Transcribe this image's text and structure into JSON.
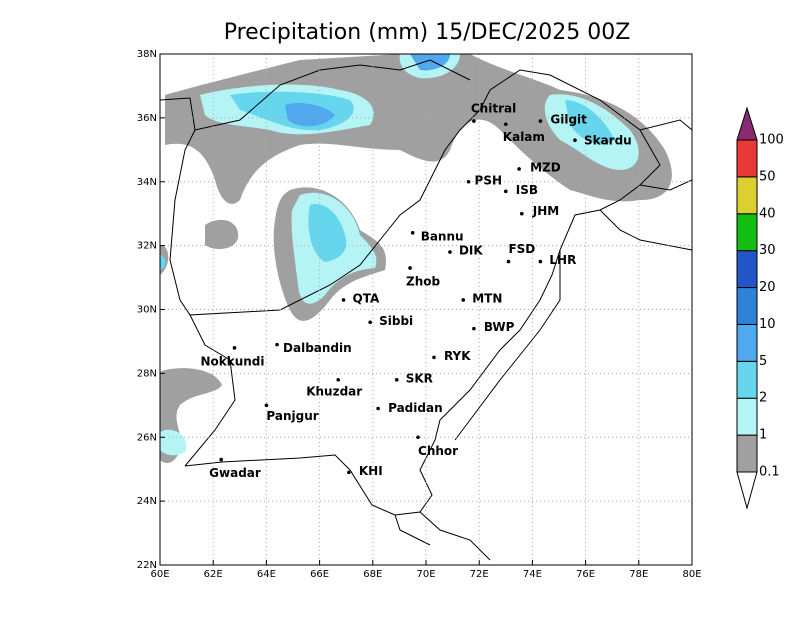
{
  "title": "Precipitation (mm) 15/DEC/2025 00Z",
  "map": {
    "xlim": [
      60,
      80
    ],
    "ylim": [
      22,
      38
    ],
    "grid": true,
    "xticks": [
      {
        "value": 60,
        "label": "60E"
      },
      {
        "value": 62,
        "label": "62E"
      },
      {
        "value": 64,
        "label": "64E"
      },
      {
        "value": 66,
        "label": "66E"
      },
      {
        "value": 68,
        "label": "68E"
      },
      {
        "value": 70,
        "label": "70E"
      },
      {
        "value": 72,
        "label": "72E"
      },
      {
        "value": 74,
        "label": "74E"
      },
      {
        "value": 76,
        "label": "76E"
      },
      {
        "value": 78,
        "label": "78E"
      },
      {
        "value": 80,
        "label": "80E"
      }
    ],
    "yticks": [
      {
        "value": 22,
        "label": "22N"
      },
      {
        "value": 24,
        "label": "24N"
      },
      {
        "value": 26,
        "label": "26N"
      },
      {
        "value": 28,
        "label": "28N"
      },
      {
        "value": 30,
        "label": "30N"
      },
      {
        "value": 32,
        "label": "32N"
      },
      {
        "value": 34,
        "label": "34N"
      },
      {
        "value": 36,
        "label": "36N"
      },
      {
        "value": 38,
        "label": "38N"
      }
    ]
  },
  "cities": [
    {
      "name": "Chitral",
      "lon": 71.8,
      "lat": 35.9
    },
    {
      "name": "Gilgit",
      "lon": 74.3,
      "lat": 35.9
    },
    {
      "name": "Kalam",
      "lon": 73.0,
      "lat": 35.8
    },
    {
      "name": "Skardu",
      "lon": 75.6,
      "lat": 35.3
    },
    {
      "name": "MZD",
      "lon": 73.5,
      "lat": 34.4
    },
    {
      "name": "PSH",
      "lon": 71.6,
      "lat": 34.0
    },
    {
      "name": "ISB",
      "lon": 73.0,
      "lat": 33.7
    },
    {
      "name": "JHM",
      "lon": 73.6,
      "lat": 33.0
    },
    {
      "name": "Bannu",
      "lon": 69.5,
      "lat": 32.4
    },
    {
      "name": "DIK",
      "lon": 70.9,
      "lat": 31.8
    },
    {
      "name": "FSD",
      "lon": 73.1,
      "lat": 31.5
    },
    {
      "name": "LHR",
      "lon": 74.3,
      "lat": 31.5
    },
    {
      "name": "Zhob",
      "lon": 69.4,
      "lat": 31.3
    },
    {
      "name": "QTA",
      "lon": 66.9,
      "lat": 30.3
    },
    {
      "name": "MTN",
      "lon": 71.4,
      "lat": 30.3
    },
    {
      "name": "Sibbi",
      "lon": 67.9,
      "lat": 29.6
    },
    {
      "name": "BWP",
      "lon": 71.8,
      "lat": 29.4
    },
    {
      "name": "Dalbandin",
      "lon": 64.4,
      "lat": 28.9
    },
    {
      "name": "Nokkundi",
      "lon": 62.8,
      "lat": 28.8
    },
    {
      "name": "RYK",
      "lon": 70.3,
      "lat": 28.5
    },
    {
      "name": "Khuzdar",
      "lon": 66.7,
      "lat": 27.8
    },
    {
      "name": "SKR",
      "lon": 68.9,
      "lat": 27.8
    },
    {
      "name": "Panjgur",
      "lon": 64.0,
      "lat": 27.0
    },
    {
      "name": "Padidan",
      "lon": 68.2,
      "lat": 26.9
    },
    {
      "name": "Chhor",
      "lon": 69.7,
      "lat": 26.0
    },
    {
      "name": "KHI",
      "lon": 67.1,
      "lat": 24.9
    },
    {
      "name": "Gwadar",
      "lon": 62.3,
      "lat": 25.3
    }
  ],
  "colorbar": {
    "levels": [
      0.1,
      1,
      2,
      5,
      10,
      20,
      30,
      40,
      50,
      100
    ],
    "colors": [
      "#ffffff",
      "#a0a0a0",
      "#b4f4f4",
      "#66d6ee",
      "#50a8ee",
      "#2f82d8",
      "#2256c8",
      "#12be12",
      "#dcd030",
      "#e83838",
      "#8a2a70"
    ]
  }
}
